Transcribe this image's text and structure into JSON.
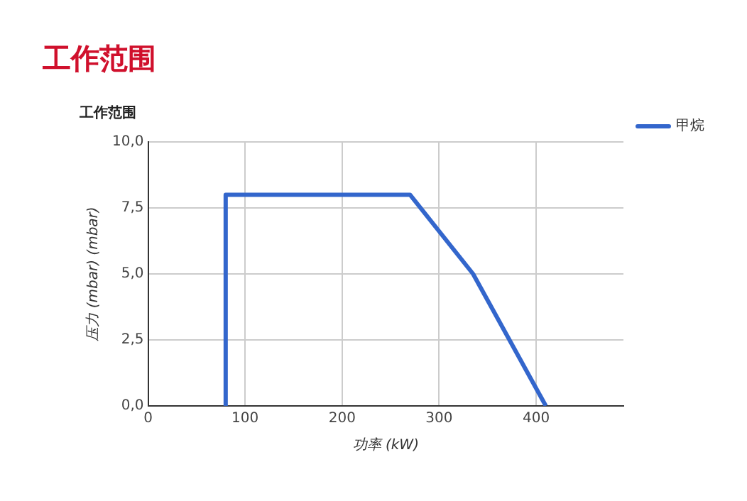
{
  "chart_data": {
    "type": "line",
    "title": "工作范围",
    "subtitle": "工作范围",
    "xlabel": "功率 (kW)",
    "ylabel": "压力 (mbar) (mbar)",
    "x": [
      80,
      80,
      270,
      335,
      410
    ],
    "series": [
      {
        "name": "甲烷",
        "color": "#3366cc",
        "values": [
          0,
          8,
          8,
          5,
          0
        ]
      }
    ],
    "xlim": [
      0,
      490
    ],
    "xticks": [
      0,
      100,
      200,
      300,
      400
    ],
    "ylim": [
      0,
      10
    ],
    "yticks": [
      {
        "value": 0,
        "label": "0,0"
      },
      {
        "value": 2.5,
        "label": "2,5"
      },
      {
        "value": 5,
        "label": "5,0"
      },
      {
        "value": 7.5,
        "label": "7,5"
      },
      {
        "value": 10,
        "label": "10,0"
      }
    ],
    "grid": true,
    "legend": "top right",
    "marker": "none",
    "line_style": "solid"
  }
}
